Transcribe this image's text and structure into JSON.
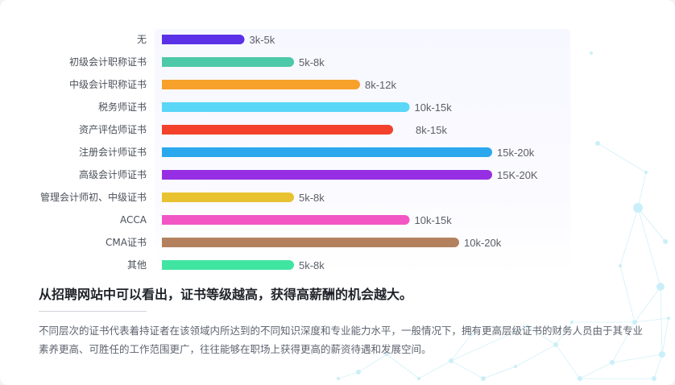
{
  "chart_data": {
    "type": "bar",
    "orientation": "horizontal",
    "categories": [
      "无",
      "初级会计职称证书",
      "中级会计职称证书",
      "税务师证书",
      "资产评估师证书",
      "注册会计师证书",
      "高级会计师证书",
      "管理会计师初、中级证书",
      "ACCA",
      "CMA证书",
      "其他"
    ],
    "value_labels": [
      "3k-5k",
      "5k-8k",
      "8k-12k",
      "10k-15k",
      "8k-15k",
      "15k-20k",
      "15K-20K",
      "5k-8k",
      "10k-15k",
      "10k-20k",
      "5k-8k"
    ],
    "values": [
      5,
      8,
      12,
      15,
      14,
      20,
      20,
      8,
      15,
      18,
      8
    ],
    "colors": [
      "#5a31e6",
      "#4cc9a8",
      "#f7a12b",
      "#5ad6f7",
      "#f3412b",
      "#2ba7ee",
      "#962fe3",
      "#e9c231",
      "#f256c5",
      "#b3815e",
      "#41e5a2"
    ],
    "xlabel": "",
    "ylabel": "",
    "grid": false,
    "legend": "none"
  },
  "text": {
    "headline": "从招聘网站中可以看出，证书等级越高，获得高薪酬的机会越大。",
    "body": "不同层次的证书代表着持证者在该领域内所达到的不同知识深度和专业能力水平，一般情况下，拥有更高层级证书的财务人员由于其专业素养更高、可胜任的工作范围更广，往往能够在职场上获得更高的薪资待遇和发展空间。"
  }
}
